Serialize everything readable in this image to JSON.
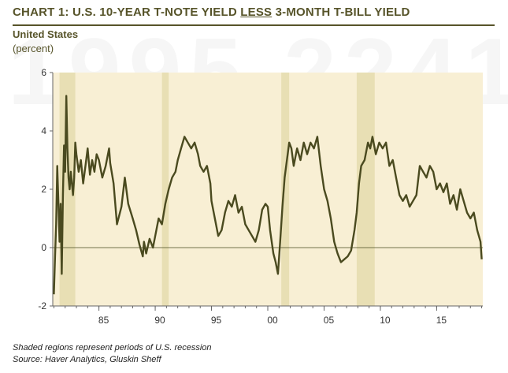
{
  "title_prefix": "CHART 1: U.S. 10-YEAR T-NOTE YIELD ",
  "title_emph": "LESS",
  "title_suffix": " 3-MONTH T-BILL YIELD",
  "watermark": "1995 2241",
  "subtitle": "United States",
  "unit": "(percent)",
  "note": "Shaded regions represent periods of U.S. recession",
  "source": "Source: Haver Analytics, Gluskin Sheff",
  "colors": {
    "line": "#4a4a1f",
    "plot_bg": "#f8efd4",
    "recession": "#e8dfb4",
    "zero_line": "#4a4a1f"
  },
  "chart_data": {
    "type": "line",
    "title": "U.S. 10-YEAR T-NOTE YIELD LESS 3-MONTH T-BILL YIELD",
    "ylabel": "(percent)",
    "xlim": [
      1980.9,
      2019.1
    ],
    "ylim": [
      -2,
      6
    ],
    "yticks": [
      -2,
      0,
      2,
      4,
      6
    ],
    "xticks": [
      {
        "value": 1985,
        "label": "85"
      },
      {
        "value": 1990,
        "label": "90"
      },
      {
        "value": 1995,
        "label": "95"
      },
      {
        "value": 2000,
        "label": "00"
      },
      {
        "value": 2005,
        "label": "05"
      },
      {
        "value": 2010,
        "label": "10"
      },
      {
        "value": 2015,
        "label": "15"
      }
    ],
    "recessions": [
      [
        1981.5,
        1982.9
      ],
      [
        1990.6,
        1991.2
      ],
      [
        2001.2,
        2001.9
      ],
      [
        2007.9,
        2009.5
      ]
    ],
    "series": [
      {
        "x": [
          1981.0,
          1981.1,
          1981.2,
          1981.3,
          1981.4,
          1981.5,
          1981.6,
          1981.7,
          1981.8,
          1981.9,
          1982.0,
          1982.1,
          1982.2,
          1982.3,
          1982.4,
          1982.5,
          1982.6,
          1982.7,
          1982.8,
          1982.9,
          1983.0,
          1983.2,
          1983.4,
          1983.6,
          1983.8,
          1984.0,
          1984.2,
          1984.4,
          1984.6,
          1984.8,
          1985.0,
          1985.3,
          1985.6,
          1985.9,
          1986.0,
          1986.3,
          1986.6,
          1987.0,
          1987.3,
          1987.6,
          1988.0,
          1988.3,
          1988.6,
          1988.9,
          1989.0,
          1989.2,
          1989.5,
          1989.8,
          1990.0,
          1990.3,
          1990.6,
          1990.9,
          1991.2,
          1991.5,
          1991.8,
          1992.0,
          1992.3,
          1992.6,
          1992.9,
          1993.2,
          1993.5,
          1993.8,
          1994.0,
          1994.3,
          1994.6,
          1994.9,
          1995.0,
          1995.3,
          1995.6,
          1995.9,
          1996.2,
          1996.5,
          1996.8,
          1997.1,
          1997.4,
          1997.7,
          1998.0,
          1998.3,
          1998.6,
          1998.9,
          1999.2,
          1999.5,
          1999.8,
          2000.0,
          2000.2,
          2000.5,
          2000.7,
          2000.9,
          2001.1,
          2001.3,
          2001.5,
          2001.7,
          2001.9,
          2002.1,
          2002.3,
          2002.6,
          2002.9,
          2003.2,
          2003.5,
          2003.8,
          2004.1,
          2004.4,
          2004.7,
          2005.0,
          2005.3,
          2005.6,
          2005.9,
          2006.2,
          2006.5,
          2006.8,
          2007.1,
          2007.4,
          2007.7,
          2007.9,
          2008.1,
          2008.3,
          2008.6,
          2008.9,
          2009.1,
          2009.3,
          2009.6,
          2009.9,
          2010.2,
          2010.5,
          2010.8,
          2011.1,
          2011.4,
          2011.7,
          2012.0,
          2012.3,
          2012.6,
          2012.9,
          2013.2,
          2013.5,
          2013.8,
          2014.1,
          2014.4,
          2014.7,
          2015.0,
          2015.3,
          2015.6,
          2015.9,
          2016.2,
          2016.5,
          2016.8,
          2017.1,
          2017.4,
          2017.7,
          2018.0,
          2018.3,
          2018.6,
          2018.9,
          2019.0
        ],
        "y": [
          -1.6,
          -0.3,
          0.8,
          2.8,
          1.6,
          0.2,
          1.5,
          -0.9,
          1.8,
          3.5,
          2.6,
          5.2,
          3.4,
          2.4,
          2.0,
          2.6,
          2.2,
          1.8,
          2.4,
          3.6,
          3.2,
          2.6,
          3.0,
          2.2,
          2.8,
          3.4,
          2.5,
          3.0,
          2.6,
          3.2,
          3.0,
          2.4,
          2.8,
          3.4,
          2.9,
          2.2,
          0.8,
          1.4,
          2.4,
          1.5,
          1.0,
          0.6,
          0.1,
          -0.3,
          0.2,
          -0.2,
          0.3,
          0.0,
          0.4,
          1.0,
          0.8,
          1.5,
          2.0,
          2.4,
          2.6,
          3.0,
          3.4,
          3.8,
          3.6,
          3.4,
          3.6,
          3.2,
          2.8,
          2.6,
          2.8,
          2.2,
          1.6,
          1.0,
          0.4,
          0.6,
          1.2,
          1.6,
          1.4,
          1.8,
          1.2,
          1.4,
          0.8,
          0.6,
          0.4,
          0.2,
          0.6,
          1.3,
          1.5,
          1.4,
          0.6,
          -0.2,
          -0.5,
          -0.9,
          0.2,
          1.4,
          2.4,
          3.0,
          3.6,
          3.4,
          2.8,
          3.4,
          3.0,
          3.6,
          3.2,
          3.6,
          3.4,
          3.8,
          2.8,
          2.0,
          1.6,
          1.0,
          0.2,
          -0.2,
          -0.5,
          -0.4,
          -0.3,
          -0.1,
          0.6,
          1.2,
          2.2,
          2.8,
          3.0,
          3.6,
          3.4,
          3.8,
          3.2,
          3.6,
          3.4,
          3.6,
          2.8,
          3.0,
          2.4,
          1.8,
          1.6,
          1.8,
          1.4,
          1.6,
          1.8,
          2.8,
          2.6,
          2.4,
          2.8,
          2.6,
          2.0,
          2.2,
          1.9,
          2.2,
          1.5,
          1.8,
          1.3,
          2.0,
          1.6,
          1.2,
          1.0,
          1.2,
          0.6,
          0.2,
          -0.4
        ]
      }
    ]
  }
}
